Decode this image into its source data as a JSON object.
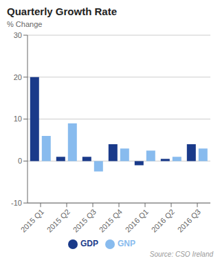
{
  "chart_data": {
    "type": "bar",
    "title": "Quarterly Growth Rate",
    "y_label": "% Change",
    "categories": [
      "2015 Q1",
      "2015 Q2",
      "2015 Q3",
      "2015 Q4",
      "2016 Q1",
      "2016 Q2",
      "2016 Q3"
    ],
    "series": [
      {
        "name": "GDP",
        "color": "#1a3a8a",
        "values": [
          20.0,
          1.0,
          1.0,
          4.0,
          -1.0,
          0.5,
          4.0
        ]
      },
      {
        "name": "GNP",
        "color": "#88bbee",
        "values": [
          6.0,
          9.0,
          -2.5,
          3.0,
          2.5,
          1.0,
          3.0
        ]
      }
    ],
    "ylim": [
      -10,
      30
    ],
    "yticks": [
      -10,
      0,
      10,
      20,
      30
    ],
    "grid": true,
    "legend": "bottom",
    "annotations": [
      "Source: CSO Ireland"
    ]
  }
}
